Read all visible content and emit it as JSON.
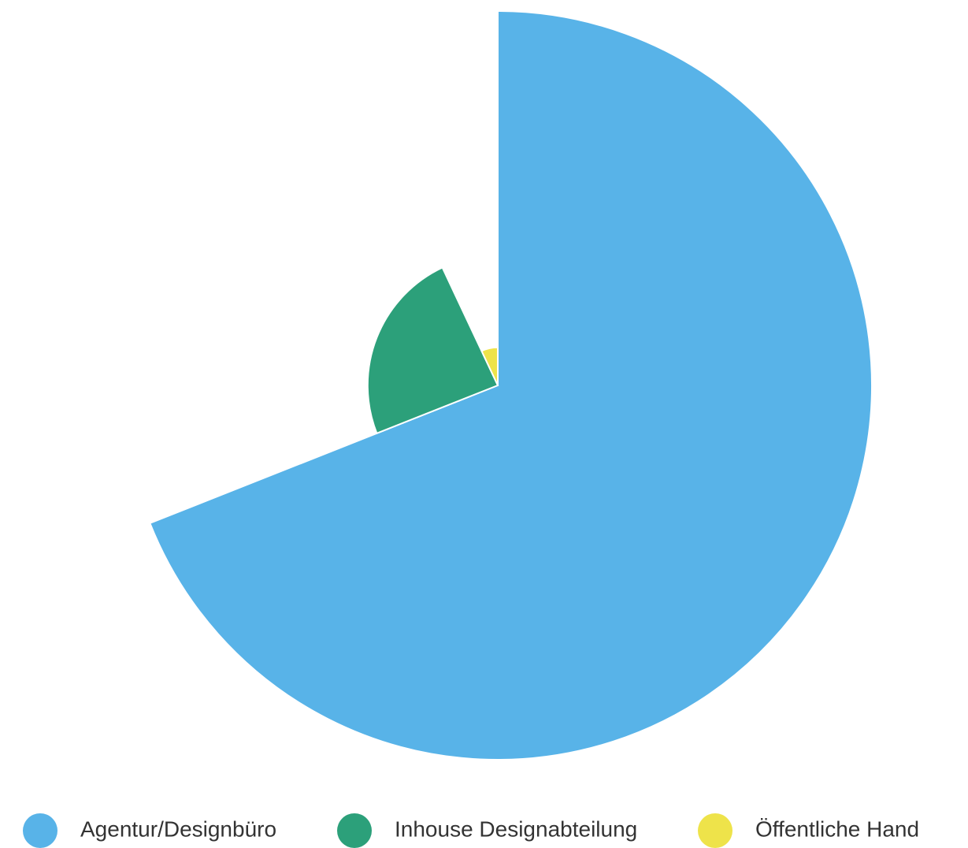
{
  "chart_data": {
    "type": "pie",
    "variable_radius": true,
    "categories": [
      "Agentur/Designbüro",
      "Inhouse Designabteilung",
      "Öffentliche Hand"
    ],
    "values": [
      69,
      24,
      7
    ],
    "colors": [
      "#58b3e8",
      "#2ca07a",
      "#eee34a"
    ]
  }
}
